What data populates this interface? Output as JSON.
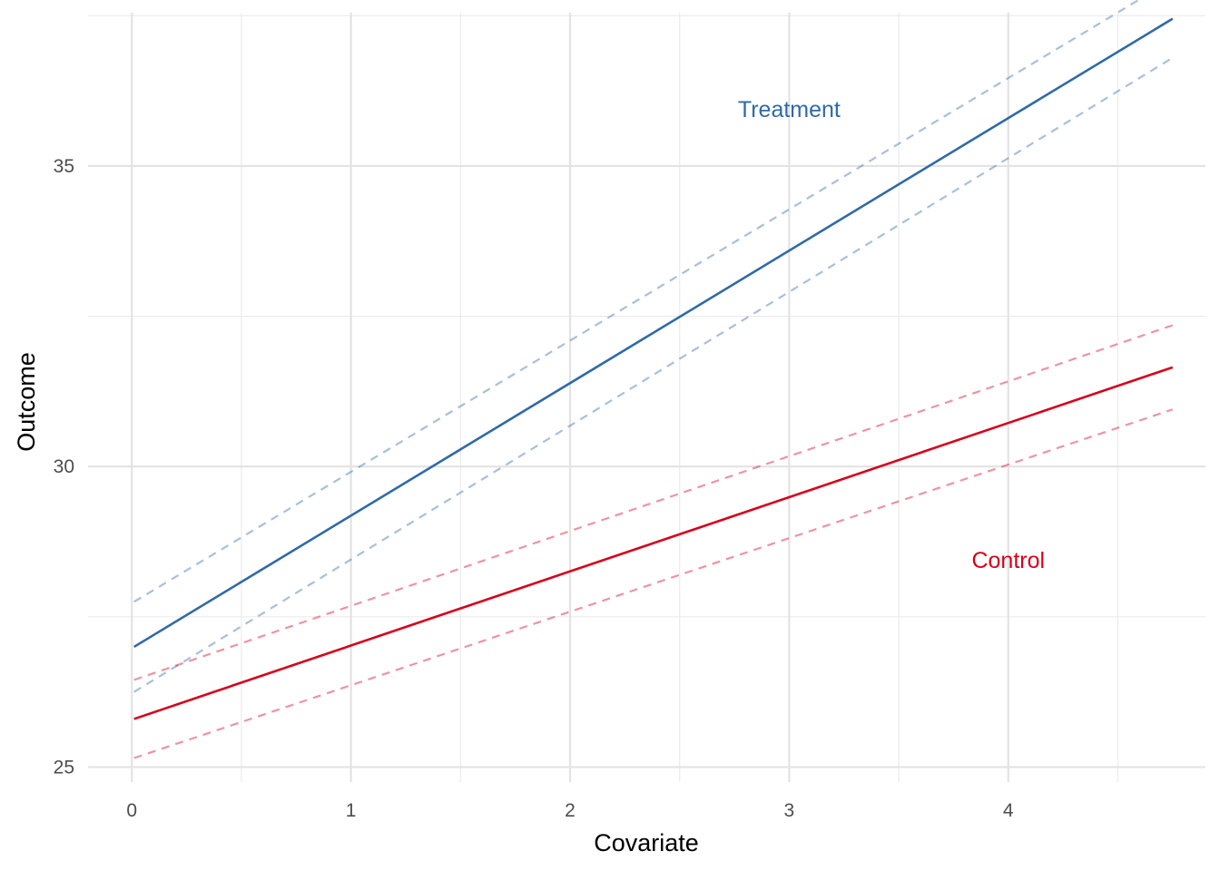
{
  "chart_data": {
    "type": "line",
    "title": "",
    "xlabel": "Covariate",
    "ylabel": "Outcome",
    "xlim": [
      -0.2,
      4.9
    ],
    "ylim": [
      24.75,
      37.55
    ],
    "x_ticks": [
      0,
      1,
      2,
      3,
      4
    ],
    "x_tick_labels": [
      "0",
      "1",
      "2",
      "3",
      "4"
    ],
    "y_ticks": [
      25,
      30,
      35
    ],
    "y_tick_labels": [
      "25",
      "30",
      "35"
    ],
    "x_minor_ticks": [
      0.5,
      1.5,
      2.5,
      3.5,
      4.5
    ],
    "y_minor_ticks": [
      27.5,
      32.5,
      37.5
    ],
    "grid": true,
    "legend": "none",
    "series": [
      {
        "name": "Treatment",
        "color": "#2f6aa8",
        "x": [
          0.01,
          4.75
        ],
        "fit": [
          27.0,
          37.45
        ],
        "upper": [
          27.75,
          38.1
        ],
        "lower": [
          26.25,
          36.8
        ],
        "label_position": [
          3.0,
          35.95
        ]
      },
      {
        "name": "Control",
        "color": "#d7001b",
        "x": [
          0.01,
          4.75
        ],
        "fit": [
          25.8,
          31.65
        ],
        "upper": [
          26.45,
          32.35
        ],
        "lower": [
          25.15,
          30.95
        ],
        "label_position": [
          4.0,
          28.45
        ]
      }
    ]
  }
}
